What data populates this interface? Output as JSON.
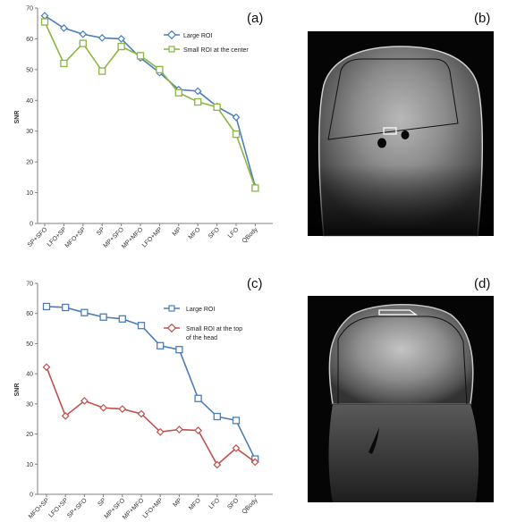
{
  "panel_labels": [
    "(a)",
    "(b)",
    "(c)",
    "(d)"
  ],
  "colors": {
    "blue": "#4a7ebb",
    "green": "#8cb541",
    "red": "#c0504d"
  },
  "chart_data": [
    {
      "type": "line",
      "panel": "(a)",
      "ylabel": "SNR",
      "xlabel": "",
      "ylim": [
        0,
        70
      ],
      "yticks": [
        0,
        10,
        20,
        30,
        40,
        50,
        60,
        70
      ],
      "grid": false,
      "legend_position": "top-right",
      "categories": [
        "SP+SFO",
        "LFO+SP",
        "MFO+SP",
        "SP",
        "MP+SFO",
        "MP+MFO",
        "LFO+MP",
        "MP",
        "MFO",
        "SFO",
        "LFO",
        "QBody"
      ],
      "series": [
        {
          "name": "Large ROI",
          "marker": "diamond",
          "color": "#4a7ebb",
          "values": [
            67.5,
            63.5,
            61.5,
            60.3,
            60,
            53.8,
            49,
            43.5,
            43,
            38,
            34.5,
            11.8
          ]
        },
        {
          "name": "Small ROI at the center",
          "marker": "square",
          "color": "#8cb541",
          "values": [
            65.5,
            52,
            58.5,
            49.5,
            57.5,
            54.5,
            50,
            42.5,
            39.5,
            37.8,
            29,
            11.5
          ]
        }
      ]
    },
    {
      "type": "line",
      "panel": "(c)",
      "ylabel": "SNR",
      "xlabel": "",
      "ylim": [
        0,
        70
      ],
      "yticks": [
        0,
        10,
        20,
        30,
        40,
        50,
        60,
        70
      ],
      "grid": false,
      "legend_position": "top-right",
      "categories": [
        "MFO+SP",
        "LFO+SP",
        "SP+SFO",
        "SP",
        "MP+SFO",
        "MP+MFO",
        "LFO+MP",
        "MP",
        "MFO",
        "LFO",
        "SFO",
        "QBody"
      ],
      "series": [
        {
          "name": "Large ROI",
          "marker": "square",
          "color": "#4a7ebb",
          "values": [
            62.3,
            62,
            60.3,
            58.8,
            58.2,
            56,
            49.3,
            48,
            31.8,
            25.8,
            24.5,
            11.7
          ]
        },
        {
          "name": "Small ROI at the top of the head",
          "marker": "diamond",
          "color": "#c0504d",
          "values": [
            42.2,
            26,
            31,
            28.7,
            28.3,
            26.7,
            20.7,
            21.5,
            21.2,
            9.8,
            15.3,
            10.7
          ]
        }
      ]
    }
  ],
  "images": [
    {
      "panel": "(b)",
      "icon": "mri-scan-center-roi"
    },
    {
      "panel": "(d)",
      "icon": "mri-scan-top-roi"
    }
  ]
}
